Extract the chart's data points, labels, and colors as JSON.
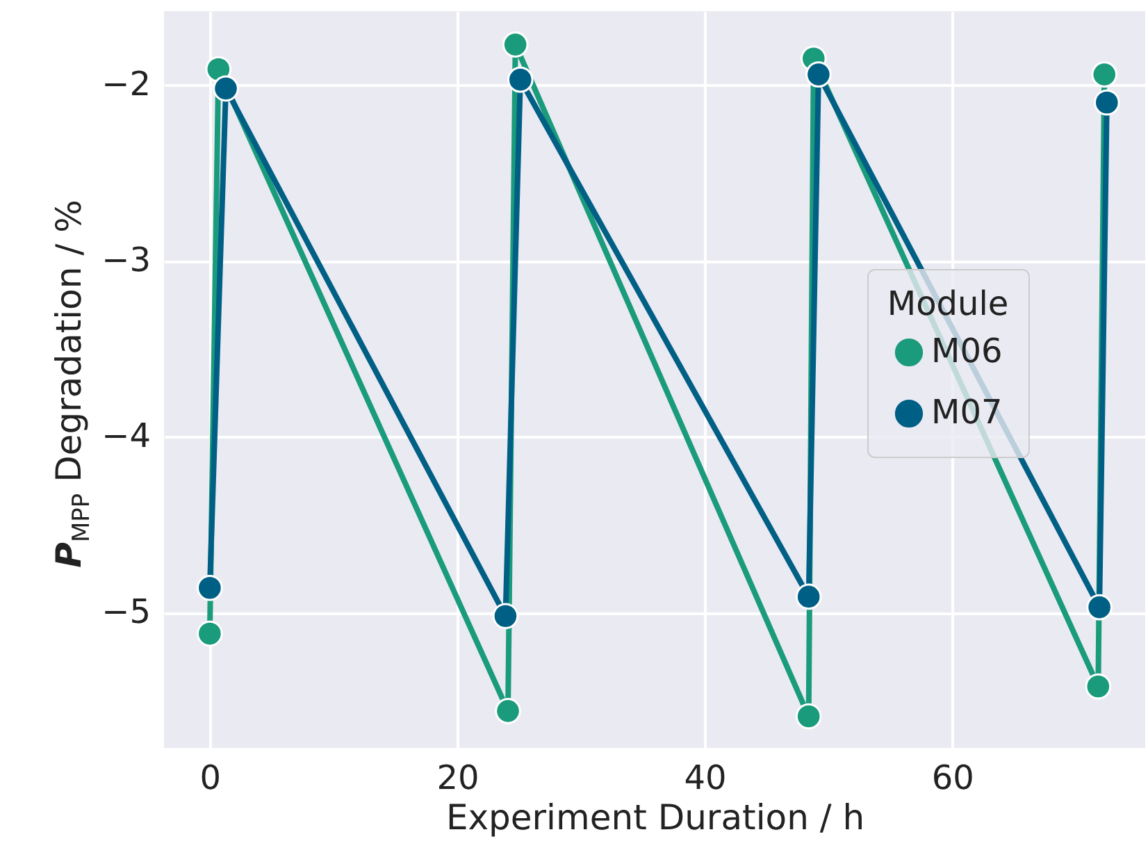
{
  "chart_data": {
    "type": "line",
    "xlabel": "Experiment Duration / h",
    "ylabel": "P$_{MPP}$ Degradation / %",
    "legend_title": "Module",
    "series": [
      {
        "name": "M06",
        "color": "#1a9b7b",
        "x": [
          0,
          0.7,
          24.1,
          24.7,
          48.4,
          48.8,
          71.8,
          72.3
        ],
        "values": [
          -5.12,
          -1.91,
          -5.56,
          -1.77,
          -5.59,
          -1.85,
          -5.42,
          -1.94
        ]
      },
      {
        "name": "M07",
        "color": "#005f84",
        "x": [
          0,
          1.3,
          23.9,
          25.1,
          48.4,
          49.2,
          71.9,
          72.5
        ],
        "values": [
          -4.86,
          -2.02,
          -5.02,
          -1.97,
          -4.91,
          -1.94,
          -4.97,
          -2.1
        ]
      }
    ],
    "xlim": [
      -3.7,
      75.6
    ],
    "ylim": [
      -5.77,
      -1.58
    ],
    "xticks": [
      0,
      20,
      40,
      60
    ],
    "yticks": [
      {
        "value": -2,
        "label": "−2"
      },
      {
        "value": -3,
        "label": "−3"
      },
      {
        "value": -4,
        "label": "−4"
      },
      {
        "value": -5,
        "label": "−5"
      }
    ],
    "grid": true,
    "legend": "right",
    "marker": "circle",
    "line_style": "solid"
  }
}
